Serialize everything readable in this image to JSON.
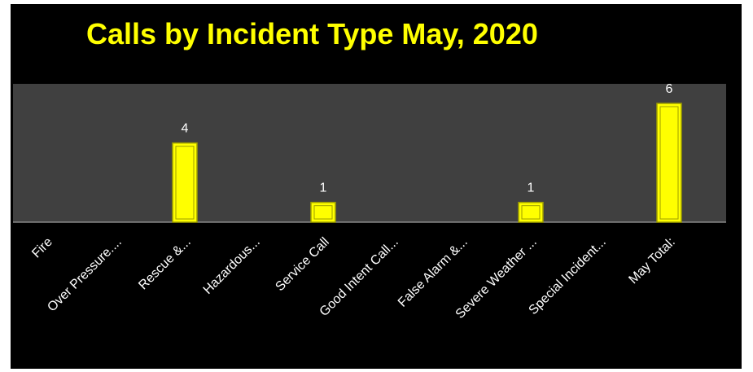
{
  "chart_data": {
    "type": "bar",
    "title": "Calls by Incident Type May, 2020",
    "categories": [
      "Fire",
      "Over Pressure....",
      "Rescue &...",
      "Hazardous...",
      "Service Call",
      "Good Intent Call...",
      "False Alarm &...",
      "Severe Weather ...",
      "Special Incident...",
      "May Total:"
    ],
    "values": [
      0,
      0,
      4,
      0,
      1,
      0,
      0,
      1,
      0,
      6
    ],
    "data_labels": [
      "",
      "",
      "4",
      "",
      "1",
      "",
      "",
      "1",
      "",
      "6"
    ],
    "ylim": [
      0,
      6
    ],
    "grid": false,
    "legend": "none",
    "colors": {
      "background": "#000000",
      "plot_area": "#404040",
      "bar_fill": "#ffff00",
      "bar_edge": "#9e9e00",
      "title": "#ffff00",
      "labels": "#ffffff"
    }
  }
}
